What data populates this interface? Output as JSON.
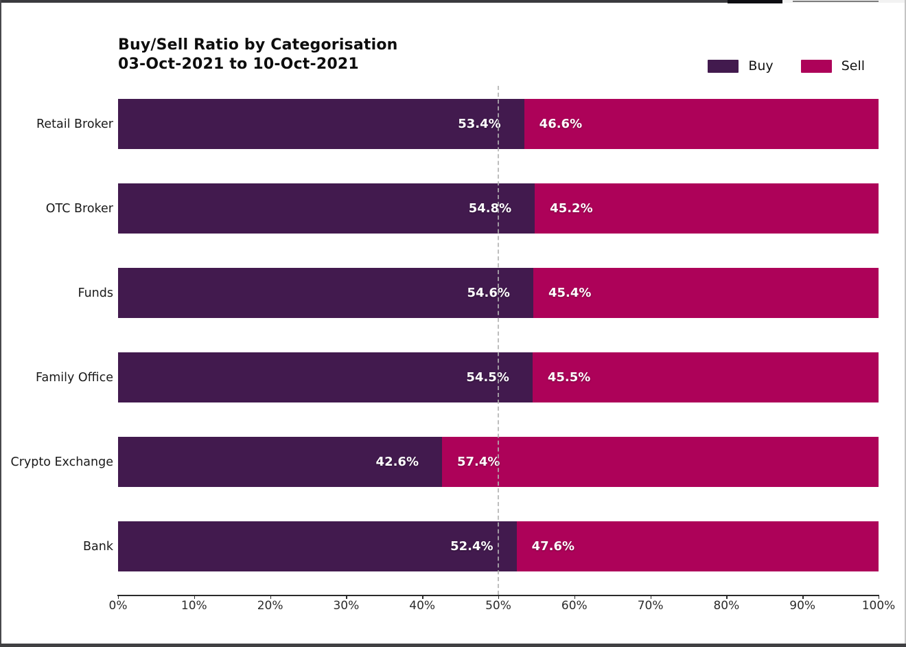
{
  "window": {
    "top_strip_color": "#3a3a3e",
    "frame_bottom_color": "#404042"
  },
  "chart": {
    "title_line1": "Buy/Sell Ratio by Categorisation",
    "title_line2": "03-Oct-2021 to 10-Oct-2021",
    "legend": [
      {
        "label": "Buy",
        "color": "#421a4e"
      },
      {
        "label": "Sell",
        "color": "#ad0259"
      }
    ]
  },
  "chart_data": {
    "type": "bar",
    "orientation": "horizontal",
    "stacked": true,
    "title": "Buy/Sell Ratio by Categorisation 03-Oct-2021 to 10-Oct-2021",
    "categories": [
      "Retail Broker",
      "OTC Broker",
      "Funds",
      "Family Office",
      "Crypto Exchange",
      "Bank"
    ],
    "series": [
      {
        "name": "Buy",
        "color": "#421a4e",
        "values": [
          53.4,
          54.8,
          54.6,
          54.5,
          42.6,
          52.4
        ],
        "labels": [
          "53.4%",
          "54.8%",
          "54.6%",
          "54.5%",
          "42.6%",
          "52.4%"
        ]
      },
      {
        "name": "Sell",
        "color": "#ad0259",
        "values": [
          46.6,
          45.2,
          45.4,
          45.5,
          57.4,
          47.6
        ],
        "labels": [
          "46.6%",
          "45.2%",
          "45.4%",
          "45.5%",
          "57.4%",
          "47.6%"
        ]
      }
    ],
    "xlim": [
      0,
      100
    ],
    "x_tick_labels": [
      "0%",
      "10%",
      "20%",
      "30%",
      "40%",
      "50%",
      "60%",
      "70%",
      "80%",
      "90%",
      "100%"
    ],
    "reference_line_x": 50,
    "reference_line_style": "dashed",
    "grid": false,
    "legend_position": "top-right",
    "value_label_color": "#ffffff"
  }
}
